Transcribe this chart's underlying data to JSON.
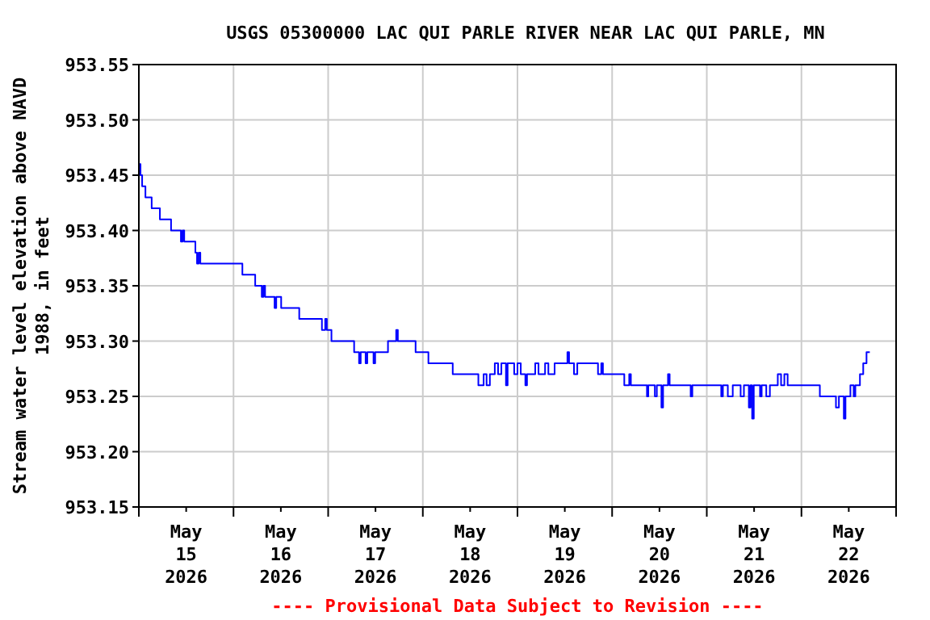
{
  "chart_data": {
    "type": "step",
    "title": "USGS 05300000 LAC QUI PARLE RIVER NEAR LAC QUI PARLE, MN",
    "ylabel": "Stream water level elevation above NAVD\n1988, in feet",
    "annotations": [
      "---- Provisional Data Subject to Revision ----"
    ],
    "x": [
      "2026-05-15T00:00",
      "2026-05-15T00:25",
      "2026-05-15T00:50",
      "2026-05-15T01:40",
      "2026-05-15T03:15",
      "2026-05-15T05:20",
      "2026-05-15T08:10",
      "2026-05-15T10:40",
      "2026-05-15T11:05",
      "2026-05-15T11:30",
      "2026-05-15T14:20",
      "2026-05-15T14:45",
      "2026-05-15T15:10",
      "2026-05-15T15:35",
      "2026-05-16T02:15",
      "2026-05-16T05:30",
      "2026-05-16T07:10",
      "2026-05-16T07:35",
      "2026-05-16T08:00",
      "2026-05-16T10:25",
      "2026-05-16T10:50",
      "2026-05-16T12:05",
      "2026-05-16T16:40",
      "2026-05-16T22:25",
      "2026-05-16T23:15",
      "2026-05-16T23:40",
      "2026-05-17T00:50",
      "2026-05-17T06:35",
      "2026-05-17T07:50",
      "2026-05-17T08:15",
      "2026-05-17T09:30",
      "2026-05-17T09:55",
      "2026-05-17T11:30",
      "2026-05-17T11:55",
      "2026-05-17T15:10",
      "2026-05-17T17:15",
      "2026-05-17T17:40",
      "2026-05-17T22:10",
      "2026-05-18T01:25",
      "2026-05-18T07:35",
      "2026-05-18T14:05",
      "2026-05-18T15:25",
      "2026-05-18T16:10",
      "2026-05-18T17:00",
      "2026-05-18T18:15",
      "2026-05-18T19:05",
      "2026-05-18T19:55",
      "2026-05-18T21:05",
      "2026-05-18T21:30",
      "2026-05-18T23:10",
      "2026-05-19T00:00",
      "2026-05-19T00:50",
      "2026-05-19T02:00",
      "2026-05-19T02:25",
      "2026-05-19T04:30",
      "2026-05-19T05:20",
      "2026-05-19T07:00",
      "2026-05-19T07:50",
      "2026-05-19T09:25",
      "2026-05-19T12:40",
      "2026-05-19T13:05",
      "2026-05-19T14:20",
      "2026-05-19T15:10",
      "2026-05-19T20:25",
      "2026-05-19T21:15",
      "2026-05-19T21:40",
      "2026-05-20T03:05",
      "2026-05-20T04:20",
      "2026-05-20T04:45",
      "2026-05-20T08:50",
      "2026-05-20T09:10",
      "2026-05-20T10:50",
      "2026-05-20T11:20",
      "2026-05-20T12:30",
      "2026-05-20T12:55",
      "2026-05-20T14:10",
      "2026-05-20T14:35",
      "2026-05-20T19:55",
      "2026-05-20T20:20",
      "2026-05-21T03:40",
      "2026-05-21T04:05",
      "2026-05-21T05:20",
      "2026-05-21T06:35",
      "2026-05-21T08:35",
      "2026-05-21T09:25",
      "2026-05-21T10:40",
      "2026-05-21T11:05",
      "2026-05-21T11:30",
      "2026-05-21T11:55",
      "2026-05-21T13:30",
      "2026-05-21T13:55",
      "2026-05-21T15:05",
      "2026-05-21T16:00",
      "2026-05-21T18:00",
      "2026-05-21T18:50",
      "2026-05-21T19:40",
      "2026-05-21T20:30",
      "2026-05-22T04:40",
      "2026-05-22T08:45",
      "2026-05-22T09:30",
      "2026-05-22T10:45",
      "2026-05-22T11:10",
      "2026-05-22T12:25",
      "2026-05-22T13:15",
      "2026-05-22T13:40",
      "2026-05-22T14:50",
      "2026-05-22T15:40",
      "2026-05-22T16:30",
      "2026-05-22T17:20"
    ],
    "series": [
      {
        "color": "#0000ff",
        "values": [
          953.46,
          953.45,
          953.44,
          953.43,
          953.42,
          953.41,
          953.4,
          953.39,
          953.4,
          953.39,
          953.38,
          953.37,
          953.38,
          953.37,
          953.36,
          953.35,
          953.34,
          953.35,
          953.34,
          953.33,
          953.34,
          953.33,
          953.32,
          953.31,
          953.32,
          953.31,
          953.3,
          953.29,
          953.28,
          953.29,
          953.28,
          953.29,
          953.28,
          953.29,
          953.3,
          953.31,
          953.3,
          953.29,
          953.28,
          953.27,
          953.26,
          953.27,
          953.26,
          953.27,
          953.28,
          953.27,
          953.28,
          953.26,
          953.28,
          953.27,
          953.28,
          953.27,
          953.26,
          953.27,
          953.28,
          953.27,
          953.28,
          953.27,
          953.28,
          953.29,
          953.28,
          953.27,
          953.28,
          953.27,
          953.28,
          953.27,
          953.26,
          953.27,
          953.26,
          953.25,
          953.26,
          953.25,
          953.26,
          953.24,
          953.26,
          953.27,
          953.26,
          953.25,
          953.26,
          953.25,
          953.26,
          953.25,
          953.26,
          953.25,
          953.26,
          953.24,
          953.26,
          953.23,
          953.26,
          953.25,
          953.26,
          953.25,
          953.26,
          953.27,
          953.26,
          953.27,
          953.26,
          953.25,
          953.24,
          953.25,
          953.23,
          953.25,
          953.26,
          953.25,
          953.26,
          953.27,
          953.28,
          953.29,
          953.29
        ]
      }
    ],
    "xlim": [
      "2026-05-15T00:00",
      "2026-05-23T00:00"
    ],
    "xticks": [
      {
        "value": "2026-05-15T00:00",
        "label": null
      },
      {
        "value": "2026-05-15T12:00",
        "label": "May\n15\n2026"
      },
      {
        "value": "2026-05-16T00:00",
        "label": null
      },
      {
        "value": "2026-05-16T12:00",
        "label": "May\n16\n2026"
      },
      {
        "value": "2026-05-17T00:00",
        "label": null
      },
      {
        "value": "2026-05-17T12:00",
        "label": "May\n17\n2026"
      },
      {
        "value": "2026-05-18T00:00",
        "label": null
      },
      {
        "value": "2026-05-18T12:00",
        "label": "May\n18\n2026"
      },
      {
        "value": "2026-05-19T00:00",
        "label": null
      },
      {
        "value": "2026-05-19T12:00",
        "label": "May\n19\n2026"
      },
      {
        "value": "2026-05-20T00:00",
        "label": null
      },
      {
        "value": "2026-05-20T12:00",
        "label": "May\n20\n2026"
      },
      {
        "value": "2026-05-21T00:00",
        "label": null
      },
      {
        "value": "2026-05-21T12:00",
        "label": "May\n21\n2026"
      },
      {
        "value": "2026-05-22T00:00",
        "label": null
      },
      {
        "value": "2026-05-22T12:00",
        "label": "May\n22\n2026"
      },
      {
        "value": "2026-05-23T00:00",
        "label": null
      }
    ],
    "ylim": [
      953.15,
      953.55
    ],
    "yticks": [
      {
        "value": 953.15,
        "label": "953.15"
      },
      {
        "value": 953.2,
        "label": "953.20"
      },
      {
        "value": 953.25,
        "label": "953.25"
      },
      {
        "value": 953.3,
        "label": "953.30"
      },
      {
        "value": 953.35,
        "label": "953.35"
      },
      {
        "value": 953.4,
        "label": "953.40"
      },
      {
        "value": 953.45,
        "label": "953.45"
      },
      {
        "value": 953.5,
        "label": "953.50"
      },
      {
        "value": 953.55,
        "label": "953.55"
      }
    ],
    "grid": true,
    "line_style": "solid",
    "marker": "none"
  }
}
